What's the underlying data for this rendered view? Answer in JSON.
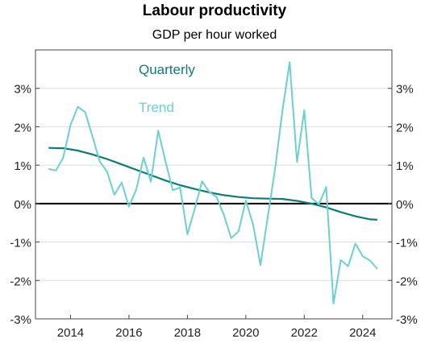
{
  "chart_data": {
    "type": "line",
    "title": "Labour productivity",
    "subtitle": "GDP per hour worked",
    "xlabel": "",
    "ylabel": "",
    "xlim": [
      2012.8,
      2025.0
    ],
    "ylim": [
      -3,
      4
    ],
    "x_ticks": [
      2014,
      2016,
      2018,
      2020,
      2022,
      2024
    ],
    "y_ticks": [
      -3,
      -2,
      -1,
      0,
      1,
      2,
      3
    ],
    "y_tick_labels": [
      "-3%",
      "-2%",
      "-1%",
      "0%",
      "1%",
      "2%",
      "3%"
    ],
    "grid": true,
    "legend": "top-left, inline labels",
    "series": [
      {
        "name": "Quarterly",
        "color": "#0b7d78",
        "x": [
          2013.25,
          2013.75,
          2014.25,
          2014.75,
          2015.25,
          2015.75,
          2016.25,
          2016.75,
          2017.25,
          2017.75,
          2018.25,
          2018.75,
          2019.25,
          2019.75,
          2020.25,
          2020.75,
          2021.25,
          2021.75,
          2022.25,
          2022.75,
          2023.25,
          2023.75,
          2024.25,
          2024.5
        ],
        "values": [
          1.45,
          1.44,
          1.38,
          1.28,
          1.16,
          1.02,
          0.88,
          0.74,
          0.6,
          0.48,
          0.38,
          0.29,
          0.22,
          0.17,
          0.14,
          0.13,
          0.12,
          0.07,
          0.0,
          -0.1,
          -0.22,
          -0.33,
          -0.41,
          -0.42
        ]
      },
      {
        "name": "Trend",
        "color": "#6ccfd1",
        "x": [
          2013.25,
          2013.5,
          2013.75,
          2014.0,
          2014.25,
          2014.5,
          2014.75,
          2015.0,
          2015.25,
          2015.5,
          2015.75,
          2016.0,
          2016.25,
          2016.5,
          2016.75,
          2017.0,
          2017.25,
          2017.5,
          2017.75,
          2018.0,
          2018.25,
          2018.5,
          2018.75,
          2019.0,
          2019.25,
          2019.5,
          2019.75,
          2020.0,
          2020.25,
          2020.5,
          2020.75,
          2021.0,
          2021.25,
          2021.5,
          2021.75,
          2022.0,
          2022.25,
          2022.5,
          2022.75,
          2023.0,
          2023.25,
          2023.5,
          2023.75,
          2024.0,
          2024.25,
          2024.5
        ],
        "values": [
          0.9,
          0.86,
          1.2,
          2.05,
          2.52,
          2.38,
          1.75,
          1.1,
          0.83,
          0.23,
          0.55,
          -0.08,
          0.37,
          1.2,
          0.57,
          1.9,
          1.1,
          0.35,
          0.42,
          -0.8,
          -0.13,
          0.58,
          0.3,
          0.17,
          -0.3,
          -0.9,
          -0.72,
          0.08,
          -0.55,
          -1.6,
          -0.35,
          0.9,
          2.4,
          3.68,
          1.08,
          2.43,
          0.15,
          -0.02,
          0.43,
          -2.6,
          -1.47,
          -1.63,
          -1.04,
          -1.37,
          -1.48,
          -1.7
        ]
      }
    ]
  }
}
